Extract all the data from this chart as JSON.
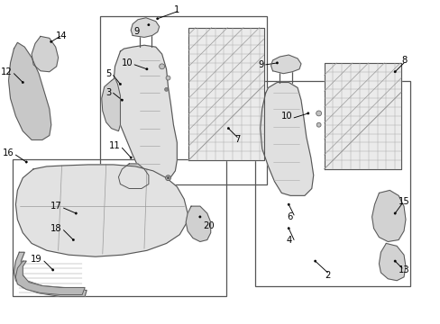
{
  "background_color": "#ffffff",
  "line_color": "#555555",
  "figsize": [
    4.89,
    3.6
  ],
  "dpi": 100
}
